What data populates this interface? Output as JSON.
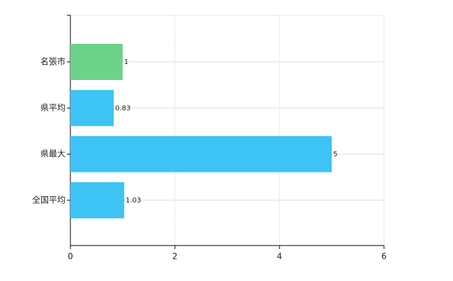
{
  "chart_data": {
    "type": "hbar",
    "categories": [
      "名張市",
      "県平均",
      "県最大",
      "全国平均"
    ],
    "values": [
      1,
      0.83,
      5,
      1.03
    ],
    "colors": [
      "#6dd28a",
      "#3ec3f5",
      "#3ec3f5",
      "#3ec3f5"
    ],
    "xlim": [
      0,
      6
    ],
    "xticks": [
      0,
      2,
      4,
      6
    ],
    "grid": true,
    "data_labels": true
  }
}
